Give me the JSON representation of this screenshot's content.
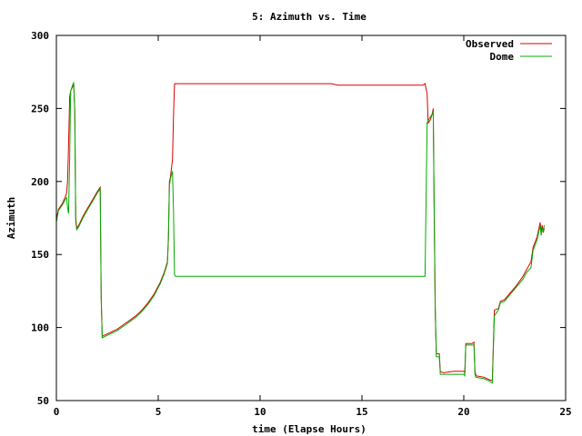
{
  "chart_data": {
    "type": "line",
    "title": "5: Azimuth vs. Time",
    "xlabel": "time (Elapse Hours)",
    "ylabel": "Azimuth",
    "xlim": [
      0,
      25
    ],
    "ylim": [
      50,
      300
    ],
    "x_ticks": [
      "0",
      "5",
      "10",
      "15",
      "20",
      "25"
    ],
    "y_ticks": [
      "50",
      "100",
      "150",
      "200",
      "250",
      "300"
    ],
    "grid": false,
    "legend_position": "top-right",
    "series": [
      {
        "name": "Observed",
        "color": "#dd0000",
        "points": [
          [
            0.0,
            174
          ],
          [
            0.1,
            181
          ],
          [
            0.3,
            185
          ],
          [
            0.45,
            190
          ],
          [
            0.5,
            192
          ],
          [
            0.55,
            200
          ],
          [
            0.6,
            225
          ],
          [
            0.65,
            258
          ],
          [
            0.7,
            262
          ],
          [
            0.8,
            265
          ],
          [
            0.85,
            267
          ],
          [
            0.9,
            250
          ],
          [
            0.95,
            175
          ],
          [
            1.0,
            168
          ],
          [
            1.1,
            170
          ],
          [
            1.3,
            176
          ],
          [
            1.5,
            181
          ],
          [
            1.8,
            188
          ],
          [
            2.0,
            193
          ],
          [
            2.15,
            196
          ],
          [
            2.2,
            120
          ],
          [
            2.25,
            94
          ],
          [
            2.4,
            95
          ],
          [
            2.7,
            97
          ],
          [
            3.0,
            99
          ],
          [
            3.3,
            102
          ],
          [
            3.6,
            105
          ],
          [
            3.9,
            108
          ],
          [
            4.2,
            112
          ],
          [
            4.5,
            117
          ],
          [
            4.8,
            123
          ],
          [
            5.1,
            131
          ],
          [
            5.3,
            138
          ],
          [
            5.45,
            145
          ],
          [
            5.5,
            160
          ],
          [
            5.55,
            200
          ],
          [
            5.6,
            203
          ],
          [
            5.7,
            215
          ],
          [
            5.75,
            245
          ],
          [
            5.8,
            267
          ],
          [
            6.5,
            267
          ],
          [
            8.0,
            267
          ],
          [
            10.0,
            267
          ],
          [
            12.0,
            267
          ],
          [
            13.5,
            267
          ],
          [
            13.8,
            266
          ],
          [
            15.0,
            266
          ],
          [
            16.5,
            266
          ],
          [
            18.0,
            266
          ],
          [
            18.1,
            267
          ],
          [
            18.2,
            260
          ],
          [
            18.25,
            240
          ],
          [
            18.35,
            242
          ],
          [
            18.45,
            246
          ],
          [
            18.5,
            250
          ],
          [
            18.55,
            175
          ],
          [
            18.6,
            110
          ],
          [
            18.65,
            82
          ],
          [
            18.8,
            82
          ],
          [
            18.85,
            70
          ],
          [
            19.0,
            69
          ],
          [
            19.5,
            70
          ],
          [
            20.0,
            70
          ],
          [
            20.05,
            69
          ],
          [
            20.1,
            89
          ],
          [
            20.4,
            89
          ],
          [
            20.5,
            90
          ],
          [
            20.55,
            70
          ],
          [
            20.6,
            67
          ],
          [
            21.0,
            66
          ],
          [
            21.3,
            64
          ],
          [
            21.4,
            64
          ],
          [
            21.5,
            112
          ],
          [
            21.7,
            113
          ],
          [
            21.8,
            118
          ],
          [
            22.0,
            119
          ],
          [
            22.3,
            124
          ],
          [
            22.6,
            129
          ],
          [
            22.9,
            135
          ],
          [
            23.1,
            140
          ],
          [
            23.3,
            145
          ],
          [
            23.4,
            155
          ],
          [
            23.6,
            162
          ],
          [
            23.75,
            172
          ],
          [
            23.8,
            165
          ],
          [
            23.85,
            170
          ],
          [
            23.9,
            165
          ],
          [
            23.95,
            168
          ]
        ]
      },
      {
        "name": "Dome",
        "color": "#00aa00",
        "points": [
          [
            0.0,
            172
          ],
          [
            0.1,
            180
          ],
          [
            0.3,
            184
          ],
          [
            0.45,
            188
          ],
          [
            0.5,
            189
          ],
          [
            0.55,
            182
          ],
          [
            0.6,
            178
          ],
          [
            0.65,
            215
          ],
          [
            0.7,
            262
          ],
          [
            0.8,
            266
          ],
          [
            0.85,
            268
          ],
          [
            0.9,
            248
          ],
          [
            0.95,
            172
          ],
          [
            1.0,
            167
          ],
          [
            1.1,
            169
          ],
          [
            1.3,
            175
          ],
          [
            1.5,
            180
          ],
          [
            1.8,
            187
          ],
          [
            2.0,
            192
          ],
          [
            2.15,
            195
          ],
          [
            2.2,
            120
          ],
          [
            2.25,
            93
          ],
          [
            2.4,
            94
          ],
          [
            2.7,
            96
          ],
          [
            3.0,
            98
          ],
          [
            3.3,
            101
          ],
          [
            3.6,
            104
          ],
          [
            3.9,
            107
          ],
          [
            4.2,
            111
          ],
          [
            4.5,
            116
          ],
          [
            4.8,
            122
          ],
          [
            5.1,
            130
          ],
          [
            5.3,
            137
          ],
          [
            5.45,
            144
          ],
          [
            5.5,
            162
          ],
          [
            5.55,
            197
          ],
          [
            5.6,
            202
          ],
          [
            5.7,
            207
          ],
          [
            5.75,
            180
          ],
          [
            5.8,
            136
          ],
          [
            5.85,
            135
          ],
          [
            8.0,
            135
          ],
          [
            10.0,
            135
          ],
          [
            12.0,
            135
          ],
          [
            14.0,
            135
          ],
          [
            16.0,
            135
          ],
          [
            18.0,
            135
          ],
          [
            18.1,
            135
          ],
          [
            18.2,
            240
          ],
          [
            18.3,
            243
          ],
          [
            18.4,
            245
          ],
          [
            18.5,
            248
          ],
          [
            18.55,
            180
          ],
          [
            18.6,
            115
          ],
          [
            18.65,
            80
          ],
          [
            18.8,
            80
          ],
          [
            18.85,
            68
          ],
          [
            19.0,
            68
          ],
          [
            19.5,
            68
          ],
          [
            20.0,
            68
          ],
          [
            20.05,
            67
          ],
          [
            20.1,
            88
          ],
          [
            20.4,
            88
          ],
          [
            20.5,
            88
          ],
          [
            20.55,
            68
          ],
          [
            20.6,
            66
          ],
          [
            21.0,
            65
          ],
          [
            21.3,
            63
          ],
          [
            21.4,
            62
          ],
          [
            21.5,
            108
          ],
          [
            21.7,
            112
          ],
          [
            21.8,
            117
          ],
          [
            22.0,
            118
          ],
          [
            22.3,
            123
          ],
          [
            22.6,
            128
          ],
          [
            22.9,
            133
          ],
          [
            23.1,
            138
          ],
          [
            23.3,
            141
          ],
          [
            23.4,
            153
          ],
          [
            23.6,
            160
          ],
          [
            23.75,
            170
          ],
          [
            23.8,
            163
          ],
          [
            23.85,
            168
          ],
          [
            23.9,
            166
          ],
          [
            23.95,
            170
          ]
        ]
      }
    ]
  }
}
